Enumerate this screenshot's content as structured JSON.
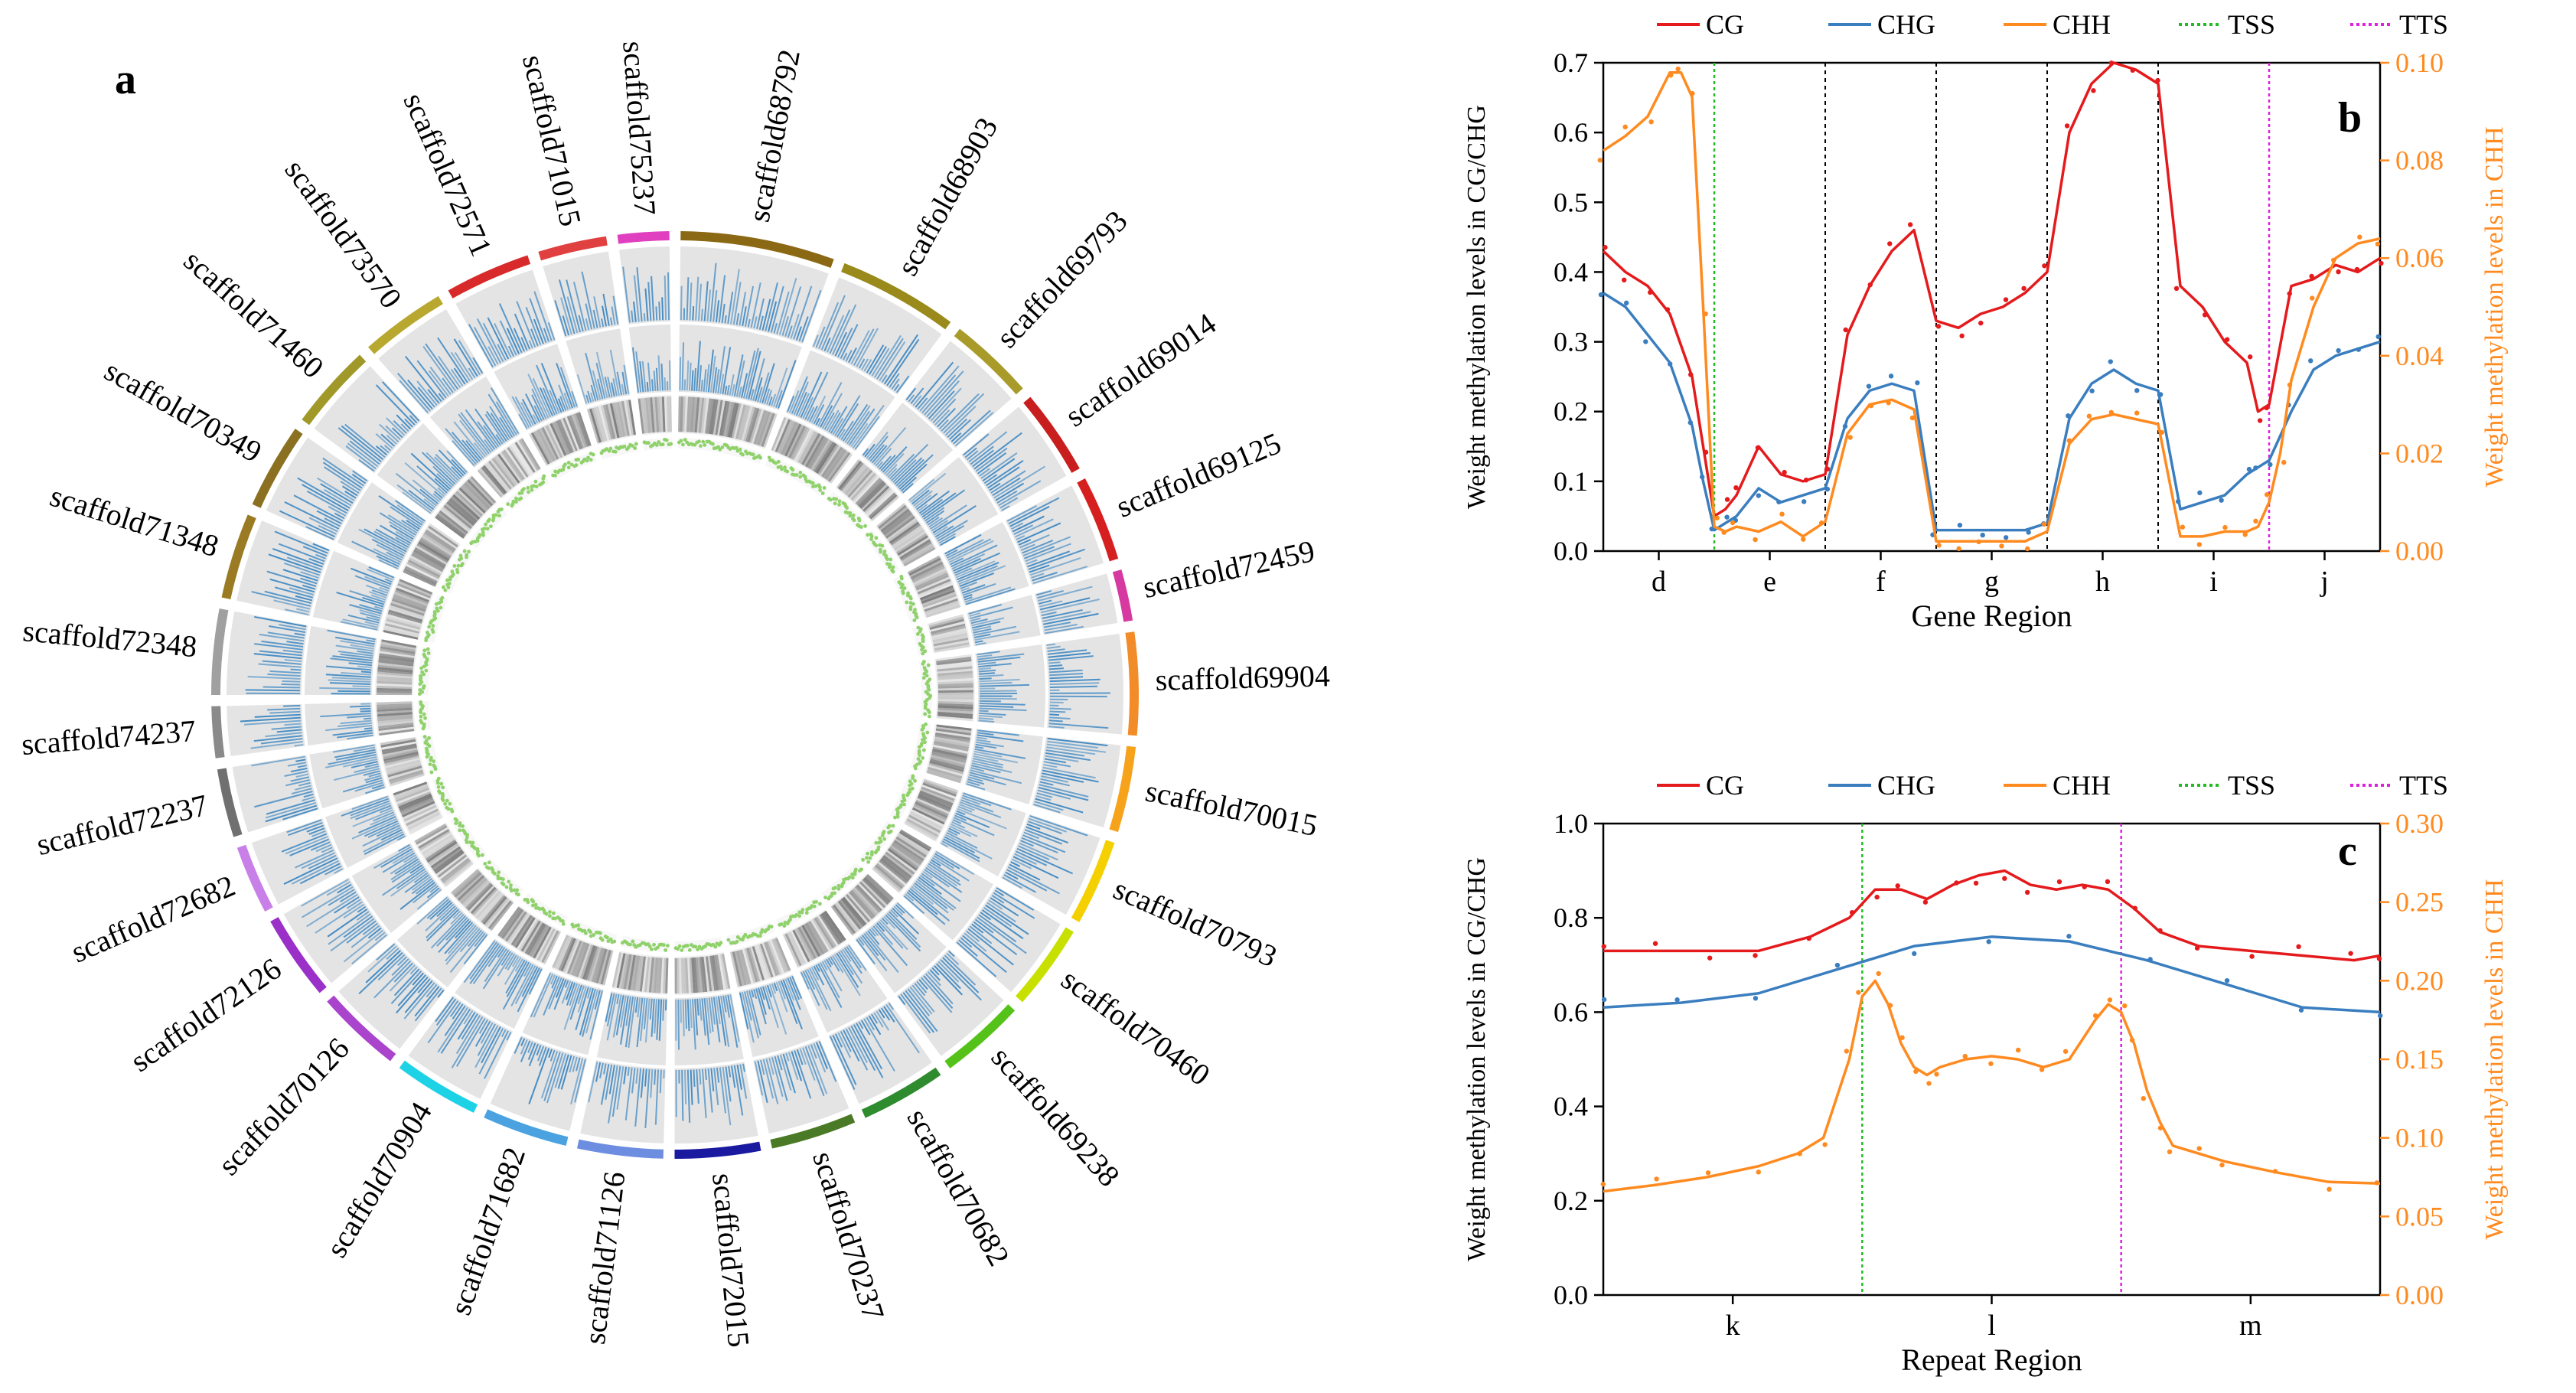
{
  "figure": {
    "panel_a_label": "a",
    "panel_b_label": "b",
    "panel_c_label": "c"
  },
  "colors": {
    "cg": "#e41a1c",
    "chg": "#3a7ebf",
    "chh": "#ff8a1f",
    "tss": "#22bb22",
    "tts": "#e020e0",
    "track_bg": "#e4e4e4",
    "circos_blue": "#3a86c2",
    "circos_green": "#8fd16a"
  },
  "chart_data": [
    {
      "type": "circos",
      "panel": "a",
      "title": "",
      "scaffolds": [
        {
          "name": "scaffold68792",
          "color": "#8b6914",
          "size": 9
        },
        {
          "name": "scaffold68903",
          "color": "#9a8a1c",
          "size": 7
        },
        {
          "name": "scaffold69793",
          "color": "#a89b2a",
          "size": 5
        },
        {
          "name": "scaffold69014",
          "color": "#c81e1e",
          "size": 5
        },
        {
          "name": "scaffold69125",
          "color": "#d62020",
          "size": 5
        },
        {
          "name": "scaffold72459",
          "color": "#d63aa0",
          "size": 3
        },
        {
          "name": "scaffold69904",
          "color": "#f28c28",
          "size": 6
        },
        {
          "name": "scaffold70015",
          "color": "#f7a21b",
          "size": 5
        },
        {
          "name": "scaffold70793",
          "color": "#f5d000",
          "size": 5
        },
        {
          "name": "scaffold70460",
          "color": "#c8e000",
          "size": 5
        },
        {
          "name": "scaffold69238",
          "color": "#55c21a",
          "size": 5
        },
        {
          "name": "scaffold70682",
          "color": "#2e8b2e",
          "size": 5
        },
        {
          "name": "scaffold70237",
          "color": "#4a7a25",
          "size": 5
        },
        {
          "name": "scaffold72015",
          "color": "#1a1aa0",
          "size": 5
        },
        {
          "name": "scaffold71126",
          "color": "#6d8de0",
          "size": 5
        },
        {
          "name": "scaffold71682",
          "color": "#4aa3e0",
          "size": 5
        },
        {
          "name": "scaffold70904",
          "color": "#1ed2e6",
          "size": 5
        },
        {
          "name": "scaffold70126",
          "color": "#aa44cc",
          "size": 5
        },
        {
          "name": "scaffold72126",
          "color": "#9b30c8",
          "size": 5
        },
        {
          "name": "scaffold72682",
          "color": "#c880e8",
          "size": 4
        },
        {
          "name": "scaffold72237",
          "color": "#707070",
          "size": 4
        },
        {
          "name": "scaffold74237",
          "color": "#8a8a8a",
          "size": 3
        },
        {
          "name": "scaffold72348",
          "color": "#a0a0a0",
          "size": 5
        },
        {
          "name": "scaffold71348",
          "color": "#9a7a22",
          "size": 5
        },
        {
          "name": "scaffold70349",
          "color": "#8a7020",
          "size": 5
        },
        {
          "name": "scaffold71460",
          "color": "#a09828",
          "size": 5
        },
        {
          "name": "scaffold73570",
          "color": "#b8a830",
          "size": 5
        },
        {
          "name": "scaffold72571",
          "color": "#d82a2a",
          "size": 5
        },
        {
          "name": "scaffold71015",
          "color": "#e04040",
          "size": 4
        },
        {
          "name": "scaffold75237",
          "color": "#e040c0",
          "size": 3
        }
      ]
    },
    {
      "type": "line",
      "panel": "b",
      "xlabel": "Gene Region",
      "ylabel_left": "Weight methylation levels in CG/CHG",
      "ylabel_right": "Weight methylation levels in CHH",
      "ylim_left": [
        0,
        0.7
      ],
      "ylim_right": [
        0,
        0.1
      ],
      "yticks_left": [
        "0.0",
        "0.1",
        "0.2",
        "0.3",
        "0.4",
        "0.5",
        "0.6",
        "0.7"
      ],
      "yticks_right": [
        "0.00",
        "0.02",
        "0.04",
        "0.06",
        "0.08",
        "0.10"
      ],
      "x_range": [
        0,
        70
      ],
      "categories": [
        "d",
        "e",
        "f",
        "g",
        "h",
        "i",
        "j"
      ],
      "category_positions": [
        5,
        15,
        25,
        35,
        45,
        55,
        65
      ],
      "region_boundaries": [
        20,
        30,
        40,
        50
      ],
      "tss_x": 10,
      "tts_x": 60,
      "legend": [
        "CG",
        "CHG",
        "CHH",
        "TSS",
        "TTS"
      ],
      "series": [
        {
          "name": "CG",
          "axis": "left",
          "x": [
            0,
            2,
            4,
            6,
            8,
            9,
            10,
            11,
            12,
            14,
            16,
            18,
            20,
            22,
            24,
            26,
            28,
            30,
            32,
            34,
            36,
            38,
            40,
            42,
            44,
            46,
            48,
            50,
            52,
            54,
            56,
            58,
            59,
            60,
            62,
            64,
            66,
            68,
            70
          ],
          "values": [
            0.43,
            0.4,
            0.38,
            0.34,
            0.25,
            0.15,
            0.05,
            0.06,
            0.08,
            0.15,
            0.11,
            0.1,
            0.11,
            0.31,
            0.38,
            0.43,
            0.46,
            0.33,
            0.32,
            0.34,
            0.35,
            0.37,
            0.4,
            0.6,
            0.67,
            0.7,
            0.69,
            0.67,
            0.38,
            0.35,
            0.3,
            0.27,
            0.2,
            0.21,
            0.38,
            0.39,
            0.41,
            0.4,
            0.42
          ]
        },
        {
          "name": "CHG",
          "axis": "left",
          "x": [
            0,
            2,
            4,
            6,
            8,
            9,
            10,
            11,
            12,
            14,
            16,
            18,
            20,
            22,
            24,
            26,
            28,
            30,
            32,
            34,
            36,
            38,
            40,
            42,
            44,
            46,
            48,
            50,
            52,
            54,
            56,
            58,
            59,
            60,
            62,
            64,
            66,
            68,
            70
          ],
          "values": [
            0.37,
            0.35,
            0.31,
            0.27,
            0.18,
            0.1,
            0.03,
            0.04,
            0.05,
            0.09,
            0.07,
            0.08,
            0.09,
            0.19,
            0.23,
            0.24,
            0.23,
            0.03,
            0.03,
            0.03,
            0.03,
            0.03,
            0.04,
            0.19,
            0.24,
            0.26,
            0.24,
            0.23,
            0.06,
            0.07,
            0.08,
            0.11,
            0.12,
            0.13,
            0.2,
            0.26,
            0.28,
            0.29,
            0.3
          ]
        },
        {
          "name": "CHH",
          "axis": "right",
          "x": [
            0,
            2,
            4,
            6,
            7,
            8,
            9,
            10,
            11,
            12,
            14,
            16,
            18,
            20,
            22,
            24,
            26,
            28,
            30,
            32,
            34,
            36,
            38,
            40,
            42,
            44,
            46,
            48,
            50,
            52,
            54,
            56,
            58,
            59,
            60,
            61,
            62,
            64,
            66,
            68,
            70
          ],
          "values": [
            0.082,
            0.085,
            0.089,
            0.098,
            0.098,
            0.093,
            0.05,
            0.005,
            0.004,
            0.005,
            0.004,
            0.006,
            0.003,
            0.006,
            0.024,
            0.03,
            0.031,
            0.029,
            0.002,
            0.002,
            0.002,
            0.002,
            0.002,
            0.004,
            0.022,
            0.027,
            0.028,
            0.027,
            0.026,
            0.003,
            0.003,
            0.004,
            0.004,
            0.005,
            0.01,
            0.02,
            0.035,
            0.05,
            0.06,
            0.063,
            0.064
          ]
        }
      ]
    },
    {
      "type": "line",
      "panel": "c",
      "xlabel": "Repeat Region",
      "ylabel_left": "Weight methylation levels in CG/CHG",
      "ylabel_right": "Weight methylation levels in CHH",
      "ylim_left": [
        0,
        1.0
      ],
      "ylim_right": [
        0,
        0.3
      ],
      "yticks_left": [
        "0.0",
        "0.2",
        "0.4",
        "0.6",
        "0.8",
        "1.0"
      ],
      "yticks_right": [
        "0.00",
        "0.05",
        "0.10",
        "0.15",
        "0.20",
        "0.25",
        "0.30"
      ],
      "x_range": [
        0,
        60
      ],
      "categories": [
        "k",
        "l",
        "m"
      ],
      "category_positions": [
        10,
        30,
        50
      ],
      "tss_x": 20,
      "tts_x": 40,
      "legend": [
        "CG",
        "CHG",
        "CHH",
        "TSS",
        "TTS"
      ],
      "series": [
        {
          "name": "CG",
          "axis": "left",
          "x": [
            0,
            4,
            8,
            12,
            16,
            19,
            21,
            23,
            25,
            27,
            29,
            31,
            33,
            35,
            37,
            39,
            41,
            43,
            46,
            50,
            54,
            58,
            60
          ],
          "values": [
            0.73,
            0.73,
            0.73,
            0.73,
            0.76,
            0.8,
            0.86,
            0.86,
            0.84,
            0.87,
            0.89,
            0.9,
            0.87,
            0.86,
            0.87,
            0.86,
            0.82,
            0.77,
            0.74,
            0.73,
            0.72,
            0.71,
            0.72
          ]
        },
        {
          "name": "CHG",
          "axis": "left",
          "x": [
            0,
            6,
            12,
            18,
            24,
            30,
            36,
            42,
            48,
            54,
            60
          ],
          "values": [
            0.61,
            0.62,
            0.64,
            0.69,
            0.74,
            0.76,
            0.75,
            0.71,
            0.66,
            0.61,
            0.6
          ]
        },
        {
          "name": "CHH",
          "axis": "right",
          "x": [
            0,
            4,
            8,
            12,
            15,
            17,
            19,
            20,
            21,
            22,
            23,
            24,
            25,
            26,
            28,
            30,
            32,
            34,
            36,
            38,
            39,
            40,
            41,
            42,
            43,
            44,
            46,
            48,
            52,
            56,
            60
          ],
          "values": [
            0.066,
            0.07,
            0.075,
            0.082,
            0.09,
            0.1,
            0.15,
            0.19,
            0.2,
            0.185,
            0.16,
            0.145,
            0.14,
            0.145,
            0.15,
            0.152,
            0.15,
            0.145,
            0.15,
            0.175,
            0.185,
            0.18,
            0.16,
            0.13,
            0.11,
            0.095,
            0.09,
            0.085,
            0.078,
            0.072,
            0.071
          ]
        }
      ]
    }
  ]
}
